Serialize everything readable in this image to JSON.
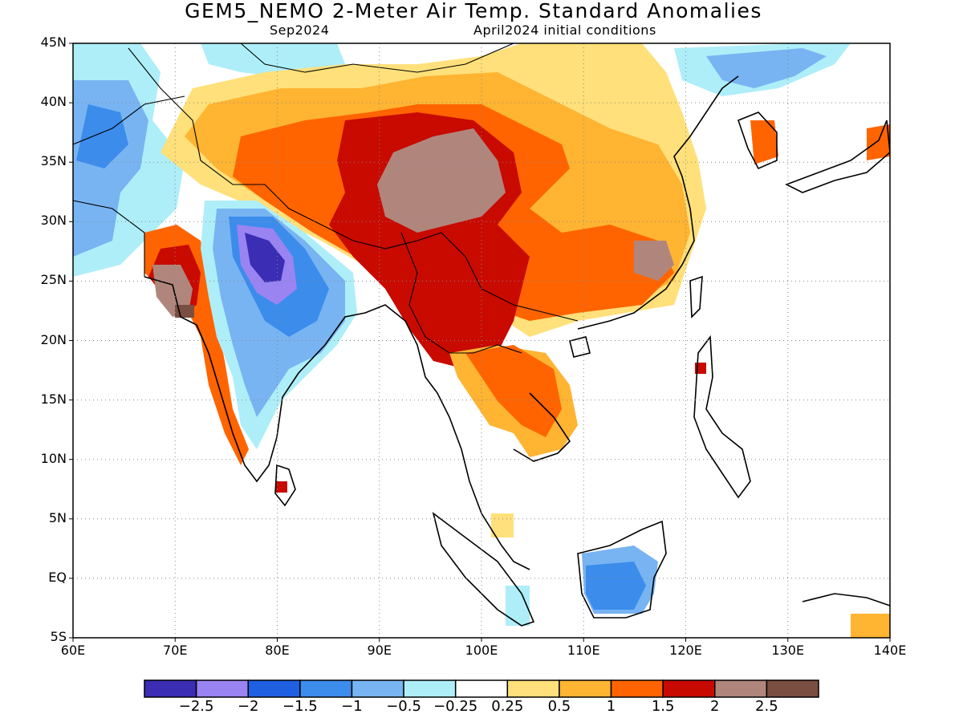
{
  "header": {
    "title": "GEM5_NEMO 2-Meter Air Temp. Standard Anomalies",
    "valid_month": "Sep2024",
    "init": "April2024 initial conditions"
  },
  "axes": {
    "lat_labels": [
      "45N",
      "40N",
      "35N",
      "30N",
      "25N",
      "20N",
      "15N",
      "10N",
      "5N",
      "EQ",
      "5S"
    ],
    "lon_labels": [
      "60E",
      "70E",
      "80E",
      "90E",
      "100E",
      "110E",
      "120E",
      "130E",
      "140E"
    ],
    "lon_range": [
      60,
      140
    ],
    "lat_range": [
      -5,
      45
    ],
    "grid": true
  },
  "colorbar": {
    "colors": [
      "#3b2db4",
      "#9a84f2",
      "#1f60e2",
      "#3c8cec",
      "#78b4f2",
      "#aeeef8",
      "#ffffff",
      "#ffe07a",
      "#ffb432",
      "#ff6400",
      "#c80a00",
      "#b0867c",
      "#7a4e40"
    ],
    "labels": [
      "−2.5",
      "−2",
      "−1.5",
      "−1",
      "−0.5",
      "−0.25",
      "0.25",
      "0.5",
      "1",
      "1.5",
      "2",
      "2.5"
    ]
  }
}
